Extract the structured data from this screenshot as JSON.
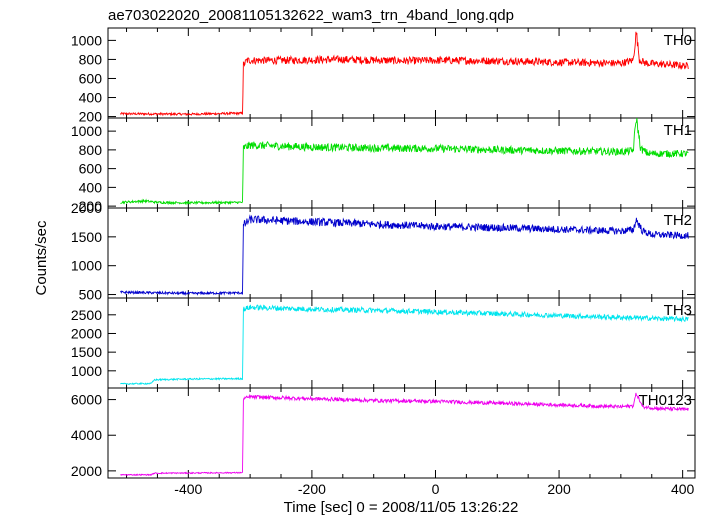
{
  "chart_data": {
    "type": "line",
    "title": "ae703022020_20081105132622_wam3_trn_4band_long.qdp",
    "xlabel": "Time [sec] 0 = 2008/11/05 13:26:22",
    "ylabel": "Counts/sec",
    "xlim": [
      -530,
      420
    ],
    "xticks": [
      -400,
      -200,
      0,
      200,
      400
    ],
    "grid": false,
    "panels": [
      {
        "name": "TH0",
        "color": "#ff0000",
        "ylim": [
          185,
          1130
        ],
        "yticks": [
          200,
          400,
          600,
          800,
          1000
        ],
        "series_points": [
          [
            -510,
            230
          ],
          [
            -400,
            225
          ],
          [
            -312,
            235
          ],
          [
            -311,
            740
          ],
          [
            -305,
            790
          ],
          [
            -250,
            790
          ],
          [
            -150,
            800
          ],
          [
            -50,
            785
          ],
          [
            0,
            790
          ],
          [
            100,
            785
          ],
          [
            200,
            770
          ],
          [
            300,
            760
          ],
          [
            320,
            790
          ],
          [
            325,
            1090
          ],
          [
            330,
            800
          ],
          [
            340,
            760
          ],
          [
            380,
            745
          ],
          [
            410,
            730
          ]
        ],
        "noise": 40
      },
      {
        "name": "TH1",
        "color": "#00dd00",
        "ylim": [
          180,
          1140
        ],
        "yticks": [
          200,
          400,
          600,
          800,
          1000
        ],
        "series_points": [
          [
            -510,
            240
          ],
          [
            -470,
            255
          ],
          [
            -450,
            240
          ],
          [
            -400,
            235
          ],
          [
            -312,
            240
          ],
          [
            -311,
            820
          ],
          [
            -300,
            850
          ],
          [
            -200,
            830
          ],
          [
            -100,
            820
          ],
          [
            0,
            815
          ],
          [
            100,
            800
          ],
          [
            200,
            790
          ],
          [
            300,
            780
          ],
          [
            320,
            790
          ],
          [
            325,
            1150
          ],
          [
            332,
            810
          ],
          [
            345,
            760
          ],
          [
            410,
            760
          ]
        ],
        "noise": 40
      },
      {
        "name": "TH2",
        "color": "#0000cc",
        "ylim": [
          440,
          2000
        ],
        "yticks": [
          500,
          1000,
          1500,
          2000
        ],
        "series_points": [
          [
            -510,
            540
          ],
          [
            -400,
            520
          ],
          [
            -312,
            530
          ],
          [
            -311,
            1700
          ],
          [
            -300,
            1800
          ],
          [
            -200,
            1760
          ],
          [
            -100,
            1720
          ],
          [
            0,
            1680
          ],
          [
            100,
            1660
          ],
          [
            200,
            1630
          ],
          [
            300,
            1600
          ],
          [
            320,
            1620
          ],
          [
            325,
            1800
          ],
          [
            335,
            1600
          ],
          [
            350,
            1540
          ],
          [
            410,
            1520
          ]
        ],
        "noise": 55
      },
      {
        "name": "TH3",
        "color": "#00e5ee",
        "ylim": [
          540,
          2950
        ],
        "yticks": [
          1000,
          1500,
          2000,
          2500
        ],
        "series_points": [
          [
            -510,
            650
          ],
          [
            -460,
            660
          ],
          [
            -455,
            760
          ],
          [
            -400,
            780
          ],
          [
            -312,
            790
          ],
          [
            -311,
            2650
          ],
          [
            -300,
            2700
          ],
          [
            -200,
            2650
          ],
          [
            -100,
            2620
          ],
          [
            0,
            2580
          ],
          [
            100,
            2530
          ],
          [
            200,
            2480
          ],
          [
            300,
            2430
          ],
          [
            410,
            2380
          ]
        ],
        "noise": 55
      },
      {
        "name": "TH0123",
        "color": "#ee00ee",
        "ylim": [
          1600,
          6650
        ],
        "yticks": [
          2000,
          4000,
          6000
        ],
        "series_points": [
          [
            -510,
            1780
          ],
          [
            -460,
            1780
          ],
          [
            -455,
            1870
          ],
          [
            -400,
            1880
          ],
          [
            -312,
            1900
          ],
          [
            -311,
            6050
          ],
          [
            -300,
            6150
          ],
          [
            -200,
            6050
          ],
          [
            -100,
            5950
          ],
          [
            0,
            5900
          ],
          [
            100,
            5800
          ],
          [
            200,
            5700
          ],
          [
            300,
            5600
          ],
          [
            320,
            5650
          ],
          [
            325,
            6350
          ],
          [
            335,
            5600
          ],
          [
            360,
            5500
          ],
          [
            410,
            5450
          ]
        ],
        "noise": 80
      }
    ]
  }
}
